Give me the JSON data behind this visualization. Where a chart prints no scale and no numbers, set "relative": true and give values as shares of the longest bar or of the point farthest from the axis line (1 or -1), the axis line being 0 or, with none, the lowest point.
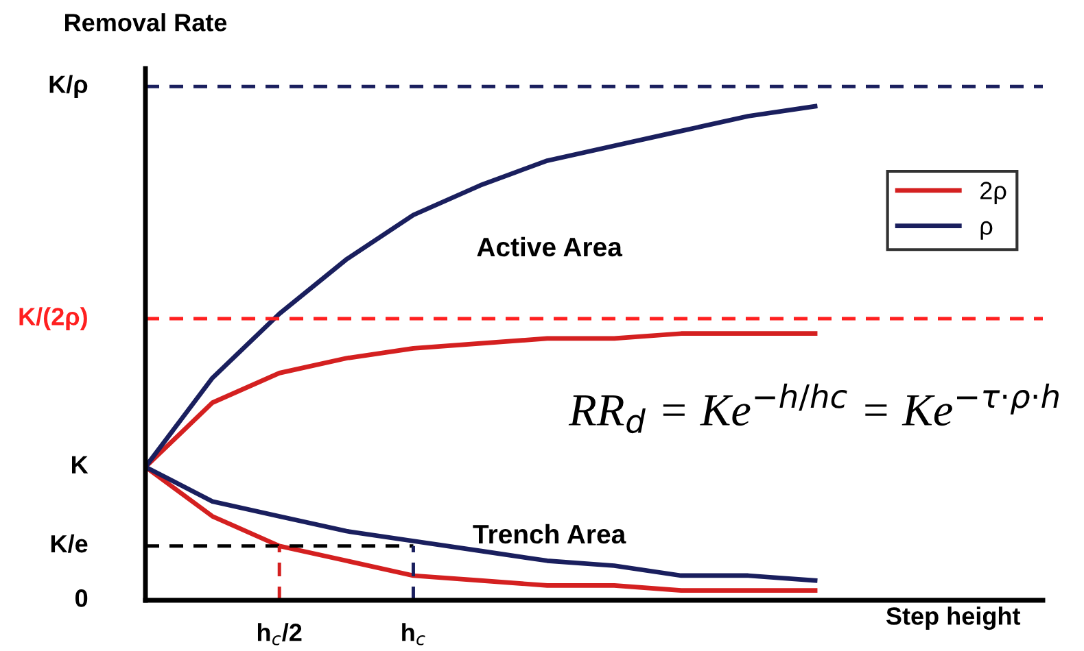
{
  "chart_data": {
    "type": "line",
    "relative": true,
    "xlabel": "Step height",
    "ylabel": "Removal Rate",
    "categories": [
      null,
      null,
      "h$_{c}$/2",
      null,
      "h$_{c}$",
      null,
      null,
      null,
      null,
      null,
      null,
      null,
      null,
      null
    ],
    "series": [
      {
        "name": "2ρ",
        "color": "#d42020",
        "values": [
          0.27,
          0.4,
          0.46,
          0.49,
          0.51,
          0.52,
          0.53,
          0.53,
          0.54,
          0.54,
          0.54,
          null,
          null,
          null
        ]
      },
      {
        "name": "ρ",
        "color": "#1a1f5e",
        "values": [
          0.27,
          0.45,
          0.58,
          0.69,
          0.78,
          0.84,
          0.89,
          0.92,
          0.95,
          0.98,
          1.0,
          null,
          null,
          null
        ]
      },
      {
        "color": "#d42020",
        "values": [
          0.27,
          0.17,
          0.11,
          0.08,
          0.05,
          0.04,
          0.03,
          0.03,
          0.02,
          0.02,
          0.02,
          null,
          null,
          null
        ]
      },
      {
        "color": "#1a1f5e",
        "values": [
          0.27,
          0.2,
          0.17,
          0.14,
          0.12,
          0.1,
          0.08,
          0.07,
          0.05,
          0.05,
          0.04,
          null,
          null,
          null
        ]
      }
    ],
    "ref_lines": [
      {
        "axis": "y",
        "value": 1.04,
        "label": "K/ρ",
        "color": "#1a1f5e",
        "line_style": "dashed"
      },
      {
        "axis": "y",
        "value": 0.57,
        "label": "K/(2ρ)",
        "color": "#ff2020",
        "line_style": "dashed"
      },
      {
        "axis": "y",
        "value": 0.11,
        "label": "K/e",
        "color": "#000000",
        "line_style": "dashed"
      },
      {
        "axis": "x",
        "value": "h$_{c}$/2",
        "color": "#d42020",
        "line_style": "dashed"
      },
      {
        "axis": "x",
        "value": "h$_{c}$",
        "color": "#1a1f5e",
        "line_style": "dashed"
      }
    ],
    "annotations": [
      "0",
      "K",
      "Active Area",
      "Trench Area",
      "RR$_{d}$ = Ke$^{−h/hc}$ = Ke$^{−τ·ρ·h}$"
    ],
    "legend": "top right",
    "grid": false,
    "marker": "none"
  }
}
